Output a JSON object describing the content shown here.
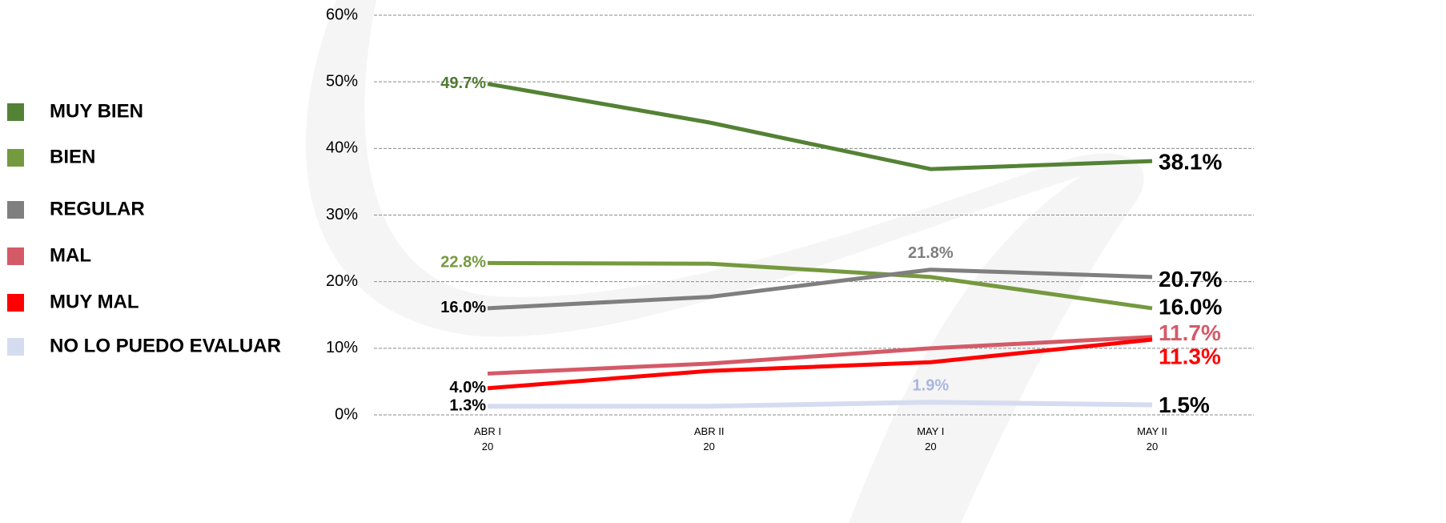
{
  "chart_data": {
    "type": "line",
    "categories": [
      "ABR I\n20",
      "ABR II\n20",
      "MAY I\n20",
      "MAY II\n20"
    ],
    "ylim": [
      0,
      60
    ],
    "yticks": [
      {
        "value": 0,
        "label": "0%"
      },
      {
        "value": 10,
        "label": "10%"
      },
      {
        "value": 20,
        "label": "20%"
      },
      {
        "value": 30,
        "label": "30%"
      },
      {
        "value": 40,
        "label": "40%"
      },
      {
        "value": 50,
        "label": "50%"
      },
      {
        "value": 60,
        "label": "60%"
      }
    ],
    "grid": true,
    "legend": "left",
    "series": [
      {
        "name": "MUY BIEN",
        "color": "#548235",
        "values": [
          49.7,
          43.9,
          36.9,
          38.1
        ],
        "value_labels": [
          "49.7%",
          null,
          null,
          "38.1%"
        ],
        "label_colors": [
          "#4e7a31",
          null,
          null,
          "#000000"
        ]
      },
      {
        "name": "BIEN",
        "color": "#75993f",
        "values": [
          22.8,
          22.7,
          20.7,
          16.0
        ],
        "value_labels": [
          "22.8%",
          null,
          null,
          "16.0%"
        ],
        "label_colors": [
          "#75993f",
          null,
          null,
          "#000000"
        ]
      },
      {
        "name": "REGULAR",
        "color": "#7f7f7f",
        "values": [
          16.0,
          17.7,
          21.8,
          20.7
        ],
        "value_labels": [
          "16.0%",
          null,
          "21.8%",
          "20.7%"
        ],
        "label_colors": [
          "#000000",
          null,
          "#7f7f7f",
          "#000000"
        ]
      },
      {
        "name": "MAL",
        "color": "#d45a68",
        "values": [
          6.2,
          7.7,
          10.0,
          11.7
        ],
        "value_labels": [
          null,
          null,
          null,
          "11.7%"
        ],
        "label_colors": [
          null,
          null,
          null,
          "#d45a68"
        ]
      },
      {
        "name": "MUY MAL",
        "color": "#ff0000",
        "values": [
          4.0,
          6.6,
          7.9,
          11.3
        ],
        "value_labels": [
          "4.0%",
          null,
          null,
          "11.3%"
        ],
        "label_colors": [
          "#000000",
          null,
          null,
          "#ff0000"
        ]
      },
      {
        "name": "NO LO PUEDO EVALUAR",
        "color": "#d6dcf0",
        "values": [
          1.3,
          1.3,
          1.9,
          1.5
        ],
        "value_labels": [
          "1.3%",
          null,
          "1.9%",
          "1.5%"
        ],
        "label_colors": [
          "#000000",
          null,
          "#a9b7e0",
          "#000000"
        ]
      }
    ]
  }
}
